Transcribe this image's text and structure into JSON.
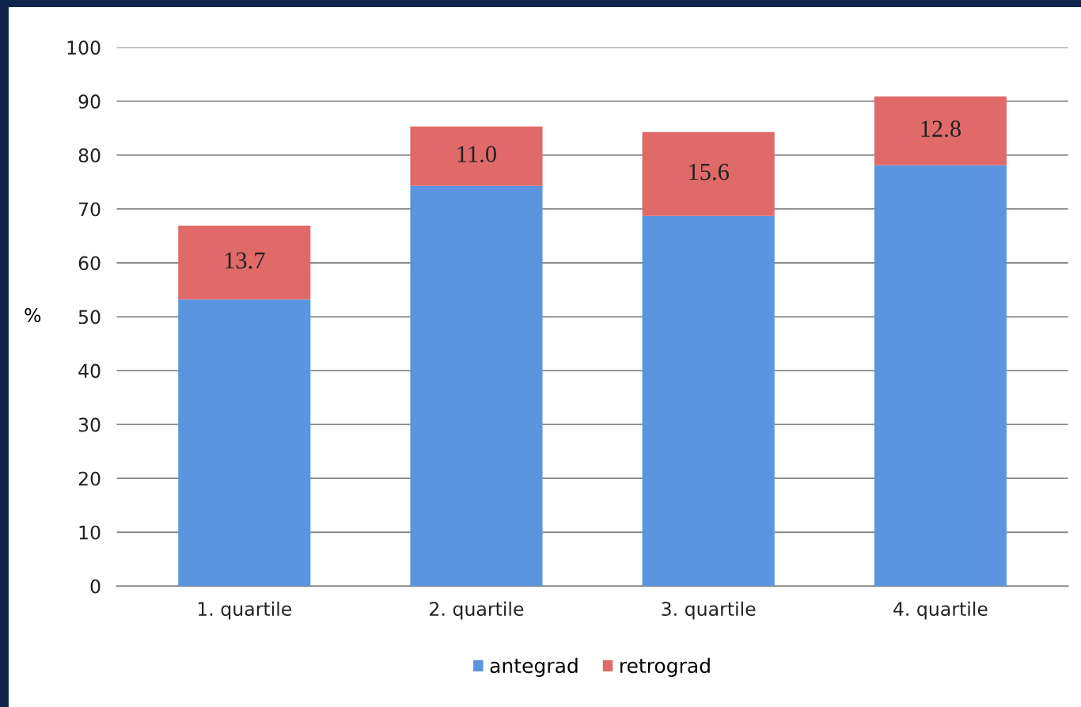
{
  "chart_data": {
    "type": "bar",
    "stacked": true,
    "ylabel": "%",
    "categories": [
      "1. quartile",
      "2. quartile",
      "3. quartile",
      "4. quartile"
    ],
    "series": [
      {
        "name": "antegrad",
        "color": "#5b95e0",
        "values": [
          53.2,
          74.3,
          68.7,
          78.1
        ]
      },
      {
        "name": "retrograd",
        "color": "#e06a6a",
        "values": [
          13.7,
          11.0,
          15.6,
          12.8
        ],
        "value_labels": [
          "13.7",
          "11.0",
          "15.6",
          "12.8"
        ]
      }
    ],
    "ylim": [
      0,
      100
    ],
    "yticks": [
      0,
      10,
      20,
      30,
      40,
      50,
      60,
      70,
      80,
      90,
      100
    ],
    "grid": "y",
    "legend": "bottom"
  }
}
